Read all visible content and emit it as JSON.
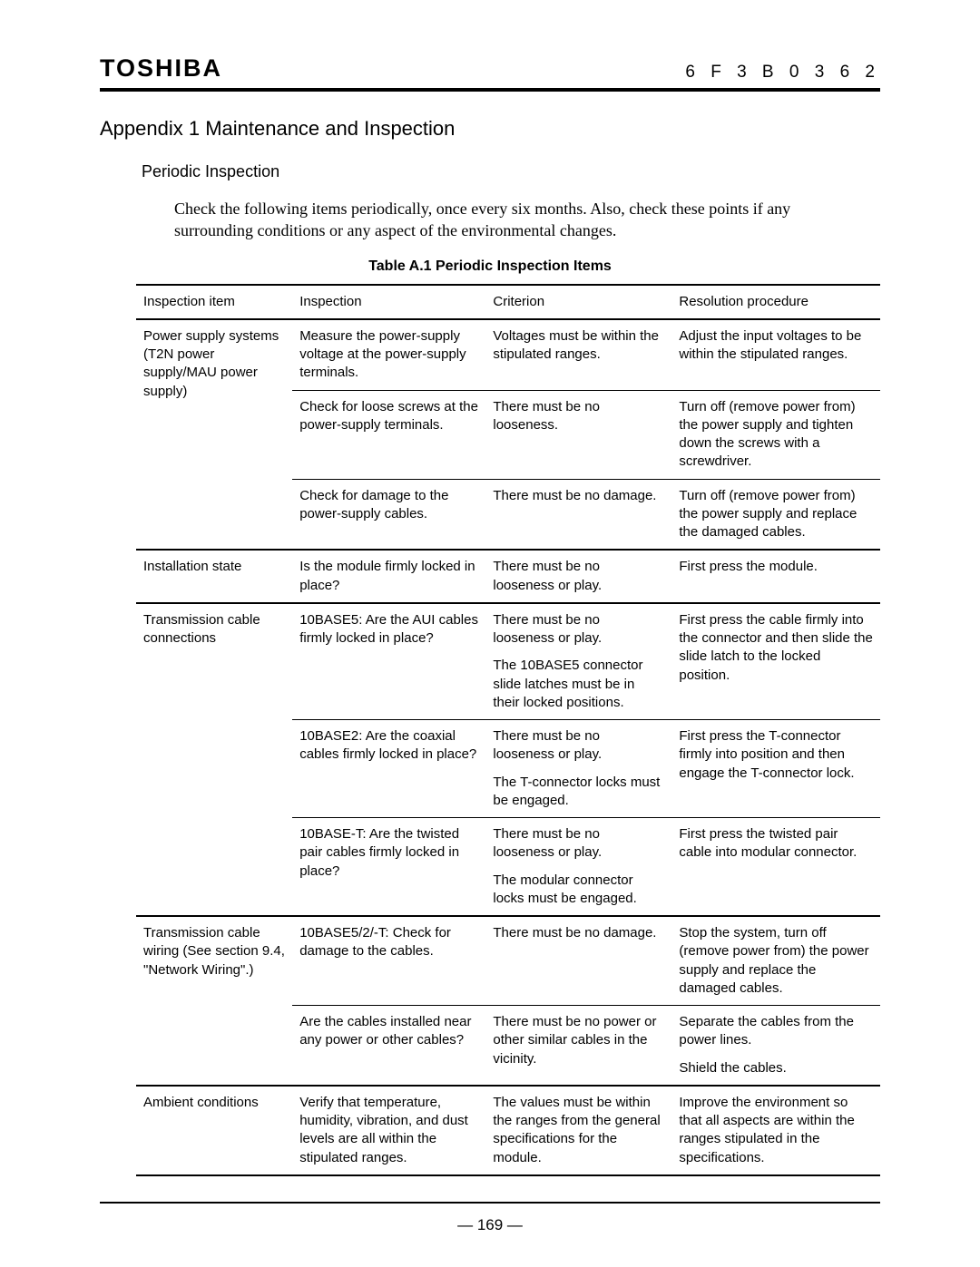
{
  "header": {
    "brand": "TOSHIBA",
    "doc_code": "6 F 3 B 0 3 6 2"
  },
  "appendix_title": "Appendix 1   Maintenance and Inspection",
  "section_title": "Periodic Inspection",
  "intro": "Check the following items periodically, once every six months. Also, check these points if any surrounding conditions or any aspect of the environmental changes.",
  "table_caption": "Table A.1    Periodic Inspection Items",
  "columns": [
    "Inspection item",
    "Inspection",
    "Criterion",
    "Resolution procedure"
  ],
  "groups": [
    {
      "item": "Power supply systems (T2N power supply/MAU power supply)",
      "rows": [
        {
          "inspection": "Measure the power-supply voltage at the power-supply terminals.",
          "criterion": "Voltages must be within the stipulated ranges.",
          "resolution": "Adjust the input voltages to be within the stipulated ranges."
        },
        {
          "inspection": "Check for loose screws at the power-supply terminals.",
          "criterion": "There must be no looseness.",
          "resolution": "Turn off (remove power from) the power supply and tighten down the screws with a screwdriver."
        },
        {
          "inspection": "Check for damage to the power-supply cables.",
          "criterion": "There must be no damage.",
          "resolution": "Turn off (remove power from) the power supply and replace the damaged cables."
        }
      ]
    },
    {
      "item": "Installation state",
      "rows": [
        {
          "inspection": "Is the module firmly locked in place?",
          "criterion": "There must be no looseness or play.",
          "resolution": "First press the module."
        }
      ]
    },
    {
      "item": "Transmission cable connections",
      "rows": [
        {
          "inspection": "10BASE5: Are the AUI cables firmly locked in place?",
          "criterion": "There must be no looseness or play.",
          "criterion2": "The 10BASE5 connector slide latches must be in their locked positions.",
          "resolution": "First press the cable firmly into the connector and then slide the slide latch to the locked position."
        },
        {
          "inspection": "10BASE2: Are the coaxial cables firmly locked in place?",
          "criterion": "There must be no looseness or play.",
          "criterion2": "The T-connector locks must be engaged.",
          "resolution": "First press the T-connector firmly into position and then engage the T-connector lock."
        },
        {
          "inspection": "10BASE-T: Are the twisted pair cables firmly locked in place?",
          "criterion": "There must be no looseness or play.",
          "criterion2": "The modular connector locks must be engaged.",
          "resolution": "First press the twisted pair cable into modular connector."
        }
      ]
    },
    {
      "item": "Transmission cable wiring (See section 9.4, \"Network Wiring\".)",
      "rows": [
        {
          "inspection": "10BASE5/2/-T: Check for damage to the cables.",
          "criterion": "There must be no damage.",
          "resolution": "Stop the system, turn off (remove power from) the power supply and replace the damaged cables."
        },
        {
          "inspection": "Are the cables installed near any power or other cables?",
          "criterion": "There must be no power or other similar cables in the vicinity.",
          "resolution": "Separate the cables from the power lines.",
          "resolution2": "Shield the cables."
        }
      ]
    },
    {
      "item": "Ambient conditions",
      "rows": [
        {
          "inspection": "Verify that temperature, humidity, vibration, and dust levels are all within the stipulated ranges.",
          "criterion": "The values must be within the ranges from the general specifications for the module.",
          "resolution": "Improve the environment so that all aspects are within the ranges stipulated in the specifications."
        }
      ]
    }
  ],
  "page_number": "— 169 —"
}
